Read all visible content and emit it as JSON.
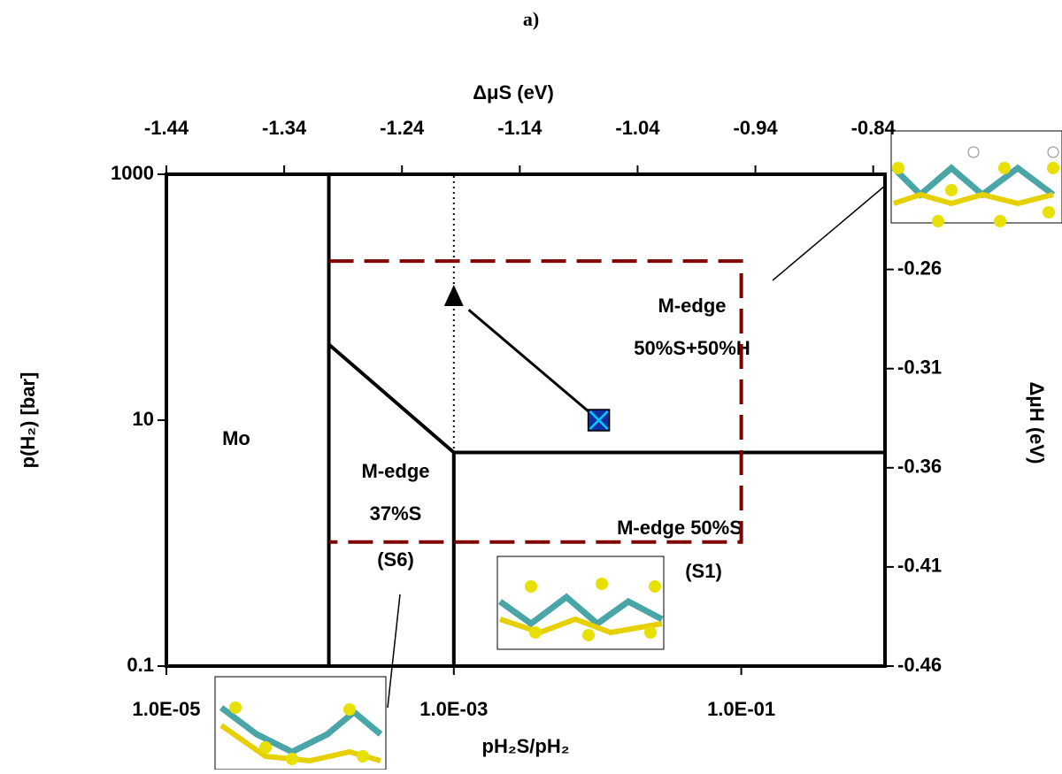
{
  "chart_data": {
    "type": "phase",
    "title": "a)",
    "x_label": "pH₂S/pH₂",
    "y_label": "p(H₂) [bar]",
    "x2_label": "ΔμS (eV)",
    "y2_label": "ΔμH (eV)",
    "log_x": true,
    "log_y": true,
    "xlim": [
      1e-05,
      1
    ],
    "ylim": [
      0.1,
      1000
    ],
    "x2lim": [
      -1.44,
      -0.83
    ],
    "y2lim": [
      -0.46,
      -0.212
    ],
    "xticks": [
      {
        "value": 1e-05,
        "label": "1.0E-05"
      },
      {
        "value": 0.001,
        "label": "1.0E-03"
      },
      {
        "value": 0.1,
        "label": "1.0E-01"
      }
    ],
    "yticks": [
      0.1,
      10,
      1000
    ],
    "x2ticks": [
      -1.44,
      -1.34,
      -1.24,
      -1.14,
      -1.04,
      -0.94,
      -0.84
    ],
    "y2ticks": [
      -0.26,
      -0.31,
      -0.36,
      -0.41,
      -0.46
    ],
    "lines": [
      {
        "x": [
          0.000135,
          0.000135
        ],
        "y": [
          0.1,
          1000
        ],
        "color": "#000000",
        "dash": "solid"
      },
      {
        "x": [
          0.000135,
          0.001,
          1
        ],
        "y": [
          41.3,
          5.46,
          5.46
        ],
        "color": "#000000",
        "dash": "solid"
      },
      {
        "x": [
          0.001,
          0.001
        ],
        "y": [
          5.46,
          0.1
        ],
        "color": "#000000",
        "dash": "solid"
      },
      {
        "x": [
          0.001,
          0.001
        ],
        "y": [
          0.1,
          1000
        ],
        "color": "#000000",
        "dash": "dotted"
      },
      {
        "x": [
          0.000135,
          0.1,
          0.1,
          0.000135
        ],
        "y": [
          197,
          197,
          1.02,
          1.02
        ],
        "color": "#800000",
        "dash": "dashed"
      }
    ],
    "marker": {
      "x": 0.0102,
      "y": 10,
      "color": "#00ccff"
    },
    "arrow": {
      "x": [
        0.0102,
        0.001
      ],
      "y": [
        10,
        100
      ]
    },
    "annotations": [
      "Mo",
      "M-edge",
      "37%S",
      "(S6)",
      "M-edge",
      "50%S+50%H",
      "M-edge 50%S",
      "(S1)"
    ]
  }
}
